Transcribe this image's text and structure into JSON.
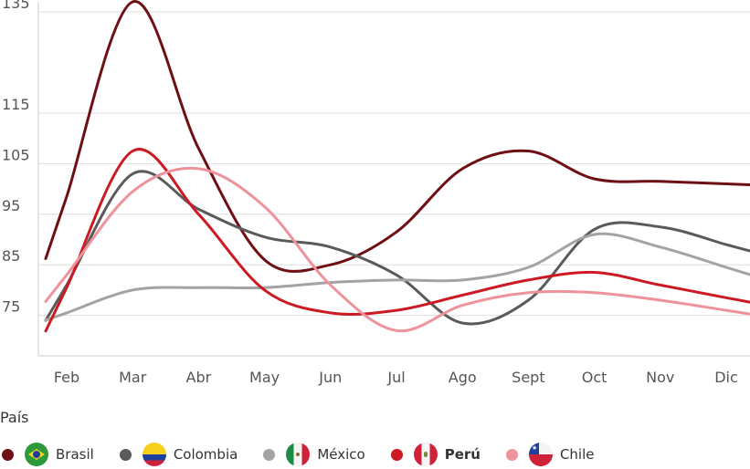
{
  "chart_data": {
    "type": "line",
    "title": "",
    "xlabel": "",
    "ylabel": "",
    "categories": [
      "Feb",
      "Mar",
      "Abr",
      "May",
      "Jun",
      "Jul",
      "Ago",
      "Sept",
      "Oct",
      "Nov",
      "Dic"
    ],
    "yticks": [
      "135",
      "115",
      "105",
      "95",
      "85",
      "75"
    ],
    "ylim": [
      67,
      137
    ],
    "grid": true,
    "legend_position": "bottom",
    "legend_title": "País",
    "series": [
      {
        "name": "Brasil",
        "color": "#6e0f14",
        "icon": "flag-brasil-icon",
        "values": [
          98.5,
          137,
          108,
          86,
          85,
          91.5,
          104,
          107.5,
          102,
          101.5,
          101
        ]
      },
      {
        "name": "Colombia",
        "color": "#5a5a5a",
        "icon": "flag-colombia-icon",
        "values": [
          81,
          103,
          96,
          90.5,
          88.5,
          83,
          73.5,
          78,
          92,
          92.5,
          89
        ]
      },
      {
        "name": "México",
        "color": "#a3a3a3",
        "icon": "flag-mexico-icon",
        "values": [
          75.5,
          80,
          80.5,
          80.5,
          81.5,
          82,
          82,
          84.5,
          91,
          88.5,
          84.5
        ]
      },
      {
        "name": "Perú",
        "color": "#cc1a25",
        "icon": "flag-peru-icon",
        "bold": true,
        "values": [
          80.5,
          107.5,
          95,
          80,
          75.5,
          76,
          79,
          82,
          83.5,
          81,
          78.5
        ]
      },
      {
        "name": "Chile",
        "color": "#ee929b",
        "icon": "flag-chile-icon",
        "values": [
          83,
          99.5,
          104,
          96.5,
          81,
          72,
          77,
          79.5,
          79.5,
          78,
          76
        ]
      }
    ]
  }
}
